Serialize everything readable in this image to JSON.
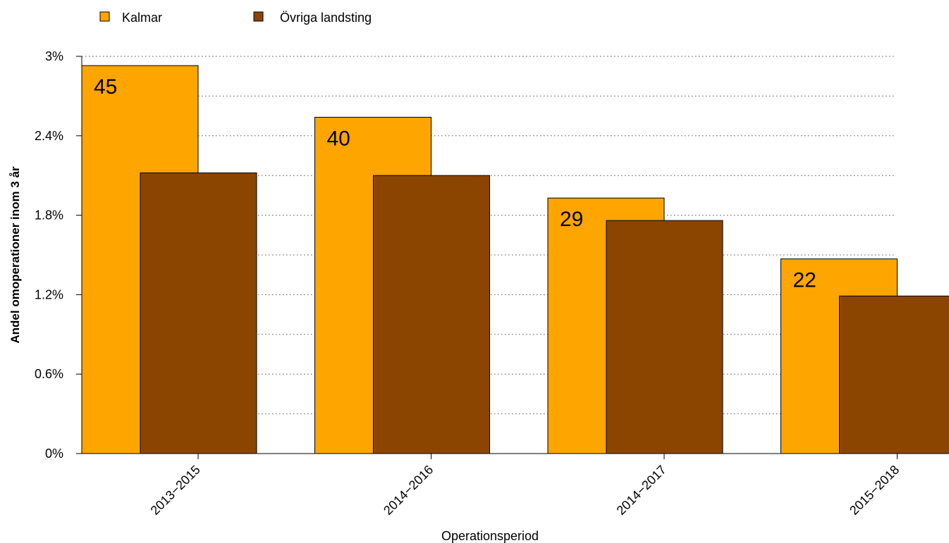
{
  "colors": {
    "kalmar": "#FFA500",
    "ovriga": "#8B4500",
    "grid": "#555555"
  },
  "chart_data": {
    "type": "bar",
    "categories": [
      "2013−2015",
      "2014−2016",
      "2014−2017",
      "2015−2018"
    ],
    "series": [
      {
        "name": "Kalmar",
        "values": [
          2.93,
          2.54,
          1.93,
          1.47
        ],
        "labels": [
          "45",
          "40",
          "29",
          "22"
        ],
        "color": "#FFA500"
      },
      {
        "name": "Övriga landsting",
        "values": [
          2.12,
          2.1,
          1.76,
          1.19
        ],
        "color": "#8B4500"
      }
    ],
    "xlabel": "Operationsperiod",
    "ylabel": "Andel omoperationer inom 3 år",
    "ylim": [
      0,
      3
    ],
    "yticks": [
      0,
      0.6,
      1.2,
      1.8,
      2.4,
      3
    ],
    "ytick_labels": [
      "0%",
      "0.6%",
      "1.2%",
      "1.8%",
      "2.4%",
      "3%"
    ],
    "grid": true,
    "grid_step": 0.3,
    "legend_position": "top-left"
  }
}
